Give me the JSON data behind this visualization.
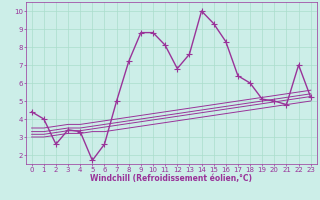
{
  "background_color": "#cceee8",
  "grid_color": "#aaddcc",
  "line_color": "#993399",
  "marker": "+",
  "marker_size": 4,
  "line_width": 1.0,
  "xlabel": "Windchill (Refroidissement éolien,°C)",
  "xlabel_fontsize": 5.5,
  "tick_fontsize": 5,
  "xlim": [
    -0.5,
    23.5
  ],
  "ylim": [
    1.5,
    10.5
  ],
  "yticks": [
    2,
    3,
    4,
    5,
    6,
    7,
    8,
    9,
    10
  ],
  "xticks": [
    0,
    1,
    2,
    3,
    4,
    5,
    6,
    7,
    8,
    9,
    10,
    11,
    12,
    13,
    14,
    15,
    16,
    17,
    18,
    19,
    20,
    21,
    22,
    23
  ],
  "series": [
    [
      4.4,
      4.0,
      2.6,
      3.4,
      3.3,
      1.7,
      2.6,
      5.0,
      7.2,
      8.8,
      8.8,
      8.1,
      6.8,
      7.6,
      10.0,
      9.3,
      8.3,
      6.4,
      6.0,
      5.1,
      5.0,
      4.8,
      7.0,
      5.2
    ],
    [
      3.0,
      3.0,
      3.1,
      3.2,
      3.2,
      3.3,
      3.3,
      3.4,
      3.5,
      3.6,
      3.7,
      3.8,
      3.9,
      4.0,
      4.1,
      4.2,
      4.3,
      4.4,
      4.5,
      4.6,
      4.7,
      4.8,
      4.9,
      5.0
    ],
    [
      3.15,
      3.15,
      3.25,
      3.35,
      3.35,
      3.45,
      3.55,
      3.65,
      3.75,
      3.85,
      3.95,
      4.05,
      4.15,
      4.25,
      4.35,
      4.45,
      4.55,
      4.65,
      4.75,
      4.85,
      4.95,
      5.05,
      5.15,
      5.25
    ],
    [
      3.3,
      3.3,
      3.4,
      3.5,
      3.5,
      3.6,
      3.7,
      3.8,
      3.9,
      4.0,
      4.1,
      4.2,
      4.3,
      4.4,
      4.5,
      4.6,
      4.7,
      4.8,
      4.9,
      5.0,
      5.1,
      5.2,
      5.3,
      5.4
    ],
    [
      3.5,
      3.5,
      3.6,
      3.7,
      3.7,
      3.8,
      3.9,
      4.0,
      4.1,
      4.2,
      4.3,
      4.4,
      4.5,
      4.6,
      4.7,
      4.8,
      4.9,
      5.0,
      5.1,
      5.2,
      5.3,
      5.4,
      5.5,
      5.6
    ]
  ]
}
